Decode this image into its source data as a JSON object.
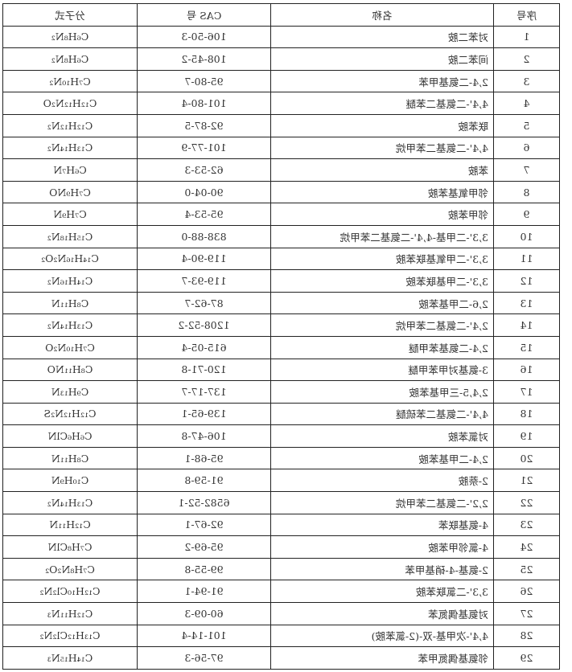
{
  "mirrored": true,
  "headers": {
    "index": "序号",
    "name": "名称",
    "cas": "CAS 号",
    "formula": "分子式"
  },
  "rows": [
    {
      "index": "1",
      "name": "对苯二胺",
      "cas": "106-50-3",
      "formula": "C₆H₈N₂"
    },
    {
      "index": "2",
      "name": "间苯二胺",
      "cas": "108-45-2",
      "formula": "C₆H₈N₂"
    },
    {
      "index": "3",
      "name": "2,4-二氨基甲苯",
      "cas": "95-80-7",
      "formula": "C₇H₁₀N₂"
    },
    {
      "index": "4",
      "name": "4,4'-二氨基二苯醚",
      "cas": "101-80-4",
      "formula": "C₁₂H₁₂N₂O"
    },
    {
      "index": "5",
      "name": "联苯胺",
      "cas": "92-87-5",
      "formula": "C₁₂H₁₂N₂"
    },
    {
      "index": "6",
      "name": "4,4'-二氨基二苯甲烷",
      "cas": "101-77-9",
      "formula": "C₁₃H₁₄N₂"
    },
    {
      "index": "7",
      "name": "苯胺",
      "cas": "62-53-3",
      "formula": "C₆H₇N"
    },
    {
      "index": "8",
      "name": "邻甲氧基苯胺",
      "cas": "90-04-0",
      "formula": "C₇H₉NO"
    },
    {
      "index": "9",
      "name": "邻甲苯胺",
      "cas": "95-53-4",
      "formula": "C₇H₉N"
    },
    {
      "index": "10",
      "name": "3,3'-二甲基-4,4'-二氨基二苯甲烷",
      "cas": "838-88-0",
      "formula": "C₁₅H₁₈N₂"
    },
    {
      "index": "11",
      "name": "3,3'-二甲氧基联苯胺",
      "cas": "119-90-4",
      "formula": "C₁₄H₁₆N₂O₂"
    },
    {
      "index": "12",
      "name": "3,3'-二甲基联苯胺",
      "cas": "119-93-7",
      "formula": "C₁₄H₁₆N₂"
    },
    {
      "index": "13",
      "name": "2,6-二甲基苯胺",
      "cas": "87-62-7",
      "formula": "C₈H₁₁N"
    },
    {
      "index": "14",
      "name": "2,4'-二氨基二苯甲烷",
      "cas": "1208-52-2",
      "formula": "C₁₃H₁₄N₂"
    },
    {
      "index": "15",
      "name": "2,4-二氨基苯甲醚",
      "cas": "615-05-4",
      "formula": "C₇H₁₀N₂O"
    },
    {
      "index": "16",
      "name": "3-氨基对甲苯甲醚",
      "cas": "120-71-8",
      "formula": "C₈H₁₁NO"
    },
    {
      "index": "17",
      "name": "2,4,5-三甲基苯胺",
      "cas": "137-17-7",
      "formula": "C₉H₁₃N"
    },
    {
      "index": "18",
      "name": "4,4'-二氨基二苯硫醚",
      "cas": "139-65-1",
      "formula": "C₁₂H₁₂N₂S"
    },
    {
      "index": "19",
      "name": "对氯苯胺",
      "cas": "106-47-8",
      "formula": "C₆H₆ClN"
    },
    {
      "index": "20",
      "name": "2,4-二甲基苯胺",
      "cas": "95-68-1",
      "formula": "C₈H₁₁N"
    },
    {
      "index": "21",
      "name": "2-萘胺",
      "cas": "91-59-8",
      "formula": "C₁₀H₉N"
    },
    {
      "index": "22",
      "name": "2,2'-二氨基二苯甲烷",
      "cas": "6582-52-1",
      "formula": "C₁₃H₁₄N₂"
    },
    {
      "index": "23",
      "name": "4-氨基联苯",
      "cas": "92-67-1",
      "formula": "C₁₂H₁₁N"
    },
    {
      "index": "24",
      "name": "4-氯邻甲苯胺",
      "cas": "95-69-2",
      "formula": "C₇H₈ClN"
    },
    {
      "index": "25",
      "name": "2-氨基-4-硝基甲苯",
      "cas": "99-55-8",
      "formula": "C₇H₈N₂O₂"
    },
    {
      "index": "26",
      "name": "3,3'-二氯联苯胺",
      "cas": "91-94-1",
      "formula": "C₁₂H₁₀Cl₂N₂"
    },
    {
      "index": "27",
      "name": "对氨基偶氮苯",
      "cas": "60-09-3",
      "formula": "C₁₂H₁₁N₃"
    },
    {
      "index": "28",
      "name": "4,4'-次甲基-双-(2-氯苯胺)",
      "cas": "101-14-4",
      "formula": "C₁₃H₁₂Cl₂N₂"
    },
    {
      "index": "29",
      "name": "邻氨基偶氮甲苯",
      "cas": "97-56-3",
      "formula": "C₁₄H₁₅N₃"
    }
  ]
}
